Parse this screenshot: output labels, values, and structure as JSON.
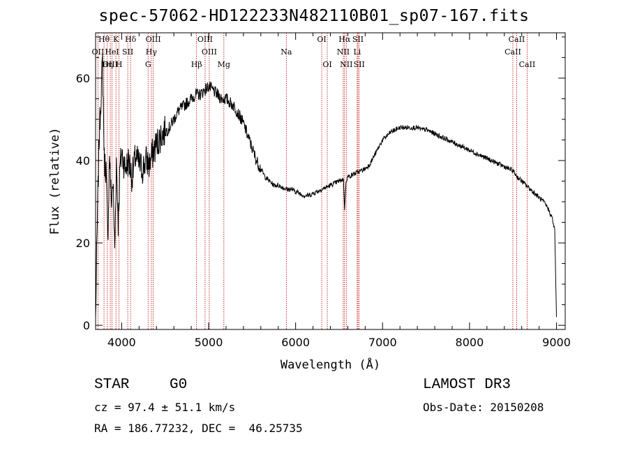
{
  "chart_data": {
    "type": "line",
    "title": "spec-57062-HD122233N482110B01_sp07-167.fits",
    "xlabel": "Wavelength (Å)",
    "ylabel": "Flux (relative)",
    "xlim": [
      3700,
      9100
    ],
    "ylim": [
      -1,
      71
    ],
    "xticks": [
      4000,
      5000,
      6000,
      7000,
      8000,
      9000
    ],
    "yticks": [
      0,
      20,
      40,
      60
    ],
    "series": [
      {
        "name": "flux",
        "x": [
          3700,
          3720,
          3740,
          3760,
          3780,
          3800,
          3820,
          3840,
          3860,
          3880,
          3900,
          3920,
          3940,
          3960,
          3980,
          4000,
          4040,
          4080,
          4120,
          4160,
          4200,
          4240,
          4280,
          4320,
          4360,
          4400,
          4450,
          4500,
          4550,
          4600,
          4650,
          4700,
          4750,
          4800,
          4850,
          4900,
          4950,
          5000,
          5050,
          5100,
          5150,
          5200,
          5250,
          5300,
          5350,
          5400,
          5450,
          5500,
          5550,
          5600,
          5650,
          5700,
          5750,
          5800,
          5850,
          5900,
          5950,
          6000,
          6050,
          6100,
          6150,
          6200,
          6250,
          6300,
          6350,
          6400,
          6450,
          6500,
          6550,
          6563,
          6580,
          6600,
          6650,
          6700,
          6750,
          6800,
          6850,
          6900,
          6950,
          7000,
          7050,
          7100,
          7150,
          7200,
          7250,
          7300,
          7350,
          7400,
          7450,
          7500,
          7550,
          7600,
          7650,
          7700,
          7750,
          7800,
          7850,
          7900,
          7950,
          8000,
          8050,
          8100,
          8150,
          8200,
          8250,
          8300,
          8350,
          8400,
          8450,
          8500,
          8550,
          8600,
          8650,
          8700,
          8750,
          8800,
          8850,
          8900,
          8950,
          8980,
          9000
        ],
        "values": [
          2,
          25,
          45,
          55,
          64,
          40,
          38,
          20,
          42,
          30,
          35,
          18,
          40,
          25,
          38,
          42,
          38,
          40,
          36,
          41,
          39,
          38,
          40,
          39,
          42,
          44,
          46,
          47,
          48,
          50,
          52,
          53,
          54,
          55,
          56,
          56,
          57,
          58,
          57,
          56,
          55,
          55,
          54,
          53,
          51,
          49,
          46,
          43,
          40,
          38,
          36,
          35,
          34,
          34,
          33.5,
          33,
          33,
          32.5,
          32,
          31.5,
          31.5,
          32,
          32.5,
          33,
          33.5,
          34,
          34.5,
          35,
          35.5,
          28,
          35,
          36,
          36.5,
          37,
          37.5,
          38,
          39,
          41,
          43,
          45,
          46,
          47,
          47.5,
          48,
          48,
          48,
          48,
          48,
          47.5,
          47.5,
          47,
          46.5,
          46,
          45.5,
          45,
          44.5,
          44,
          43.5,
          43,
          42.5,
          42,
          41.5,
          41,
          40.5,
          40,
          39.5,
          39,
          38.5,
          38,
          37.5,
          36,
          35,
          34,
          33,
          32,
          31,
          30,
          28.5,
          26,
          23,
          2
        ]
      }
    ],
    "lines": [
      {
        "label": "Hθ",
        "x": 3797,
        "row": 1
      },
      {
        "label": "OII",
        "x": 3727,
        "row": 2
      },
      {
        "label": "OIII",
        "x": 3869,
        "row": 3
      },
      {
        "label": "K",
        "x": 3934,
        "row": 1
      },
      {
        "label": "HeI",
        "x": 3889,
        "row": 2
      },
      {
        "label": "Hη",
        "x": 3835,
        "row": 3
      },
      {
        "label": "SII",
        "x": 4070,
        "row": 2
      },
      {
        "label": "H",
        "x": 3969,
        "row": 3
      },
      {
        "label": "Hδ",
        "x": 4102,
        "row": 1
      },
      {
        "label": "OIII",
        "x": 4363,
        "row": 1
      },
      {
        "label": "Hγ",
        "x": 4341,
        "row": 2
      },
      {
        "label": "G",
        "x": 4304,
        "row": 3
      },
      {
        "label": "Hβ",
        "x": 4861,
        "row": 3
      },
      {
        "label": "OIII",
        "x": 4959,
        "row": 1
      },
      {
        "label": "OIII",
        "x": 5007,
        "row": 2
      },
      {
        "label": "Mg",
        "x": 5175,
        "row": 3
      },
      {
        "label": "Na",
        "x": 5893,
        "row": 2
      },
      {
        "label": "OI",
        "x": 6300,
        "row": 1
      },
      {
        "label": "OI",
        "x": 6364,
        "row": 3
      },
      {
        "label": "Hα",
        "x": 6563,
        "row": 1
      },
      {
        "label": "NII",
        "x": 6548,
        "row": 2
      },
      {
        "label": "NII",
        "x": 6583,
        "row": 3
      },
      {
        "label": "SII",
        "x": 6717,
        "row": 1
      },
      {
        "label": "Li",
        "x": 6708,
        "row": 2
      },
      {
        "label": "SII",
        "x": 6731,
        "row": 3
      },
      {
        "label": "CaII",
        "x": 8542,
        "row": 1
      },
      {
        "label": "CaII",
        "x": 8498,
        "row": 2
      },
      {
        "label": "CaII",
        "x": 8662,
        "row": 3
      }
    ]
  },
  "info": {
    "object_type": "STAR",
    "subclass": "G0",
    "survey": "LAMOST DR3",
    "redshift": "cz = 97.4 ± 51.1 km/s",
    "obs_date": "Obs-Date: 20150208",
    "coords": "RA = 186.77232, DEC =  46.25735"
  }
}
